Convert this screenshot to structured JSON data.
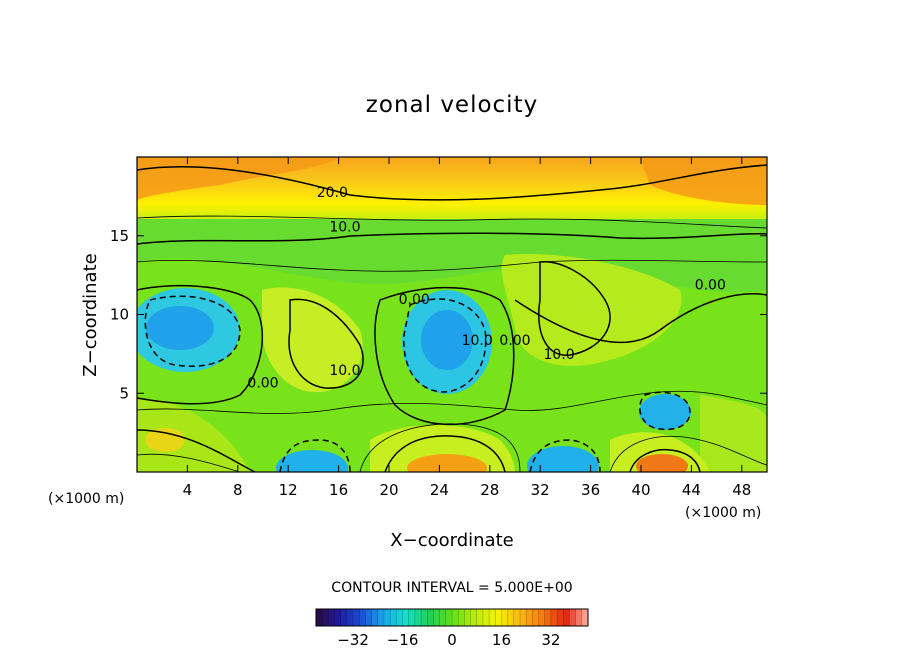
{
  "chart_data": {
    "type": "contour",
    "title": "zonal velocity",
    "xlabel": "X−coordinate",
    "ylabel": "Z−coordinate",
    "x_unit": "(×1000 m)",
    "y_unit": "(×1000 m)",
    "xlim": [
      0,
      50
    ],
    "ylim": [
      0,
      20
    ],
    "x_ticks": [
      4,
      8,
      12,
      16,
      20,
      24,
      28,
      32,
      36,
      40,
      44,
      48
    ],
    "y_ticks": [
      5,
      10,
      15
    ],
    "contour_interval_text": "CONTOUR INTERVAL = 5.000E+00",
    "contour_interval": 5.0,
    "contour_labels": [
      {
        "text": "20.0",
        "x": 15.5,
        "z": 17.6
      },
      {
        "text": "10.0",
        "x": 16.5,
        "z": 15.4
      },
      {
        "text": "0.00",
        "x": 22.0,
        "z": 10.8
      },
      {
        "text": "10.0",
        "x": 27.0,
        "z": 8.2
      },
      {
        "text": "0.00",
        "x": 30.0,
        "z": 8.2
      },
      {
        "text": "10.0",
        "x": 33.5,
        "z": 7.3
      },
      {
        "text": "10.0",
        "x": 16.5,
        "z": 6.3
      },
      {
        "text": "0.00",
        "x": 10.0,
        "z": 5.5
      },
      {
        "text": "0.00",
        "x": 45.5,
        "z": 11.7
      }
    ],
    "colorbar": {
      "ticks": [
        -32,
        -16,
        0,
        16,
        32
      ],
      "tick_labels": [
        "−32",
        "−16",
        "0",
        "16",
        "32"
      ],
      "range": [
        -44,
        44
      ],
      "colors": [
        "#2a0b3d",
        "#201a9a",
        "#1a4fd8",
        "#18a9ec",
        "#16e0c8",
        "#1ecf55",
        "#64df18",
        "#b8ea10",
        "#f6f400",
        "#f8b812",
        "#f57a12",
        "#e3240e",
        "#ffb3a0"
      ]
    },
    "grid": false,
    "legend": "bottom"
  }
}
